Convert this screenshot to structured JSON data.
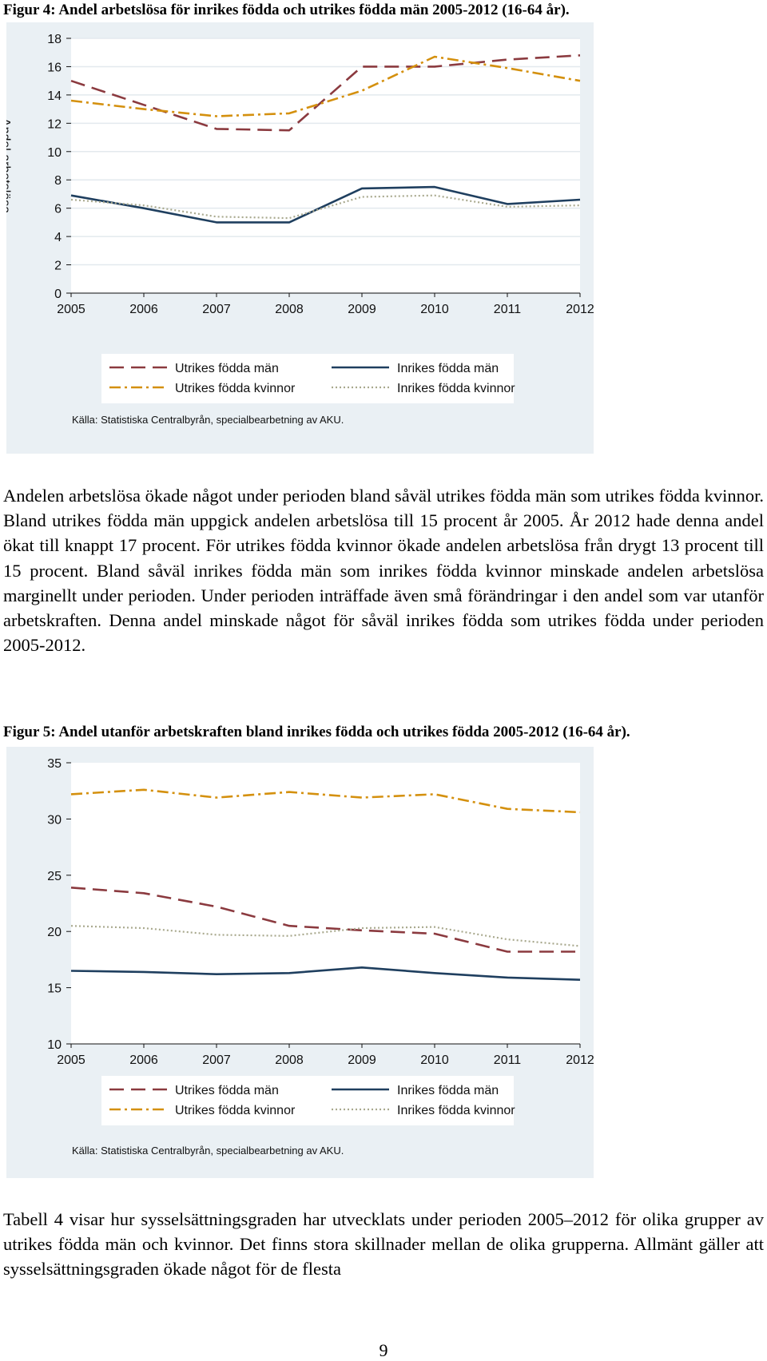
{
  "figures": [
    {
      "title": "Figur 4: Andel arbetslösa för inrikes födda och utrikes födda män 2005-2012 (16-64 år).",
      "source": "Källa: Statistiska Centralbyrån, specialbearbetning av AKU.",
      "chart_data": {
        "type": "line",
        "title": "",
        "ylabel": "Andel arbetslösa",
        "xlabel": "",
        "x": [
          2005,
          2006,
          2007,
          2008,
          2009,
          2010,
          2011,
          2012
        ],
        "ylim": [
          0,
          18
        ],
        "yticks": [
          0,
          2,
          4,
          6,
          8,
          10,
          12,
          14,
          16,
          18
        ],
        "grid": true,
        "legend_position": "bottom",
        "series": [
          {
            "name": "Utrikes födda män",
            "color": "#8b3a3f",
            "style": "dash",
            "values": [
              15.0,
              13.3,
              11.6,
              11.5,
              16.0,
              16.0,
              16.5,
              16.8
            ]
          },
          {
            "name": "Inrikes födda män",
            "color": "#1f3f5f",
            "style": "solid",
            "values": [
              6.9,
              6.0,
              5.0,
              5.0,
              7.4,
              7.5,
              6.3,
              6.6
            ]
          },
          {
            "name": "Utrikes födda kvinnor",
            "color": "#d4900e",
            "style": "dashdot",
            "values": [
              13.6,
              13.0,
              12.5,
              12.7,
              14.3,
              16.7,
              15.9,
              15.0
            ]
          },
          {
            "name": "Inrikes födda kvinnor",
            "color": "#a9a98e",
            "style": "dot",
            "values": [
              6.6,
              6.2,
              5.4,
              5.3,
              6.8,
              6.9,
              6.1,
              6.2
            ]
          }
        ]
      }
    },
    {
      "title": "Figur 5: Andel utanför arbetskraften bland inrikes födda och utrikes födda 2005-2012 (16-64 år).",
      "source": "Källa: Statistiska Centralbyrån, specialbearbetning av AKU.",
      "chart_data": {
        "type": "line",
        "title": "",
        "ylabel": "",
        "xlabel": "",
        "x": [
          2005,
          2006,
          2007,
          2008,
          2009,
          2010,
          2011,
          2012
        ],
        "ylim": [
          10,
          35
        ],
        "yticks": [
          10,
          15,
          20,
          25,
          30,
          35
        ],
        "grid": false,
        "legend_position": "bottom",
        "series": [
          {
            "name": "Utrikes födda män",
            "color": "#8b3a3f",
            "style": "dash",
            "values": [
              23.9,
              23.4,
              22.2,
              20.5,
              20.1,
              19.8,
              18.2,
              18.2
            ]
          },
          {
            "name": "Inrikes födda män",
            "color": "#1f3f5f",
            "style": "solid",
            "values": [
              16.5,
              16.4,
              16.2,
              16.3,
              16.8,
              16.3,
              15.9,
              15.7
            ]
          },
          {
            "name": "Utrikes födda kvinnor",
            "color": "#d4900e",
            "style": "dashdot",
            "values": [
              32.2,
              32.6,
              31.9,
              32.4,
              31.9,
              32.2,
              30.9,
              30.6
            ]
          },
          {
            "name": "Inrikes födda kvinnor",
            "color": "#a9a98e",
            "style": "dot",
            "values": [
              20.5,
              20.3,
              19.7,
              19.6,
              20.3,
              20.4,
              19.3,
              18.7
            ]
          }
        ]
      }
    }
  ],
  "paragraphs": [
    "Andelen arbetslösa ökade något under perioden bland såväl utrikes födda män som utrikes födda kvinnor. Bland utrikes födda män uppgick andelen arbetslösa till 15 procent år 2005. År 2012 hade denna andel ökat till knappt 17 procent. För utrikes födda kvinnor ökade andelen arbetslösa från drygt 13 procent till 15 procent. Bland såväl inrikes födda män som inrikes födda kvinnor minskade andelen arbetslösa marginellt under perioden. Under perioden inträffade även små förändringar i den andel som var utanför arbetskraften. Denna andel minskade något för såväl inrikes födda som utrikes födda under perioden 2005-2012.",
    "Tabell 4 visar hur sysselsättningsgraden har utvecklats under perioden 2005–2012 för olika grupper av utrikes födda män och kvinnor. Det finns stora skillnader mellan de olika grupperna. Allmänt gäller att sysselsättningsgraden ökade något för de flesta"
  ],
  "page_number": "9"
}
